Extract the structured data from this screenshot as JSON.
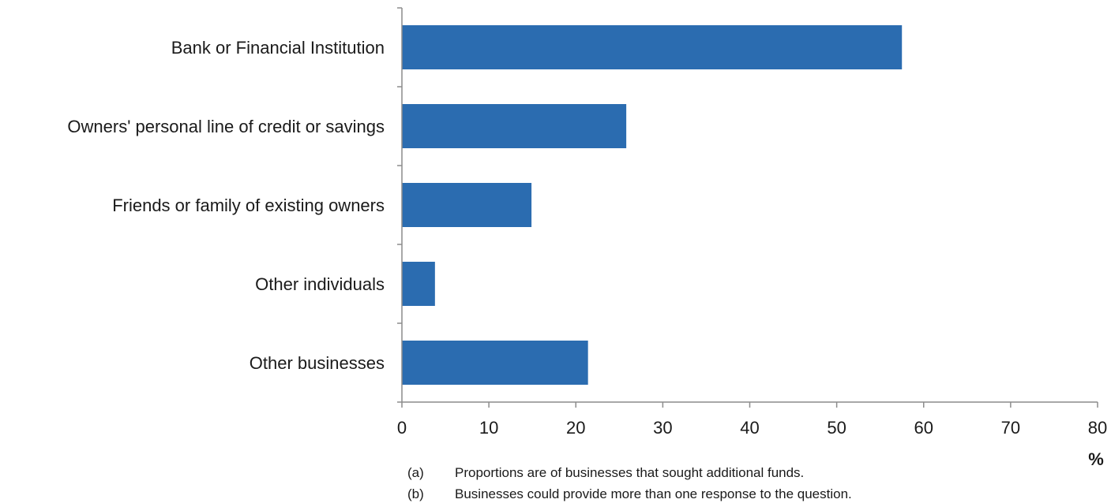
{
  "chart_data": {
    "type": "bar",
    "orientation": "horizontal",
    "categories": [
      "Bank or Financial Institution",
      "Owners' personal line of credit or savings",
      "Friends or family of existing owners",
      "Other individuals",
      "Other businesses"
    ],
    "values": [
      57.5,
      25.8,
      14.9,
      3.8,
      21.4
    ],
    "xlim": [
      0,
      80
    ],
    "xticks": [
      0,
      10,
      20,
      30,
      40,
      50,
      60,
      70,
      80
    ],
    "xlabel": "%",
    "grid": false,
    "legend": "none",
    "bar_color": "#2b6cb0"
  },
  "notes": [
    {
      "marker": "(a)",
      "text": "Proportions are of businesses that sought additional funds."
    },
    {
      "marker": "(b)",
      "text": "Businesses could provide more than one response to the question."
    }
  ]
}
